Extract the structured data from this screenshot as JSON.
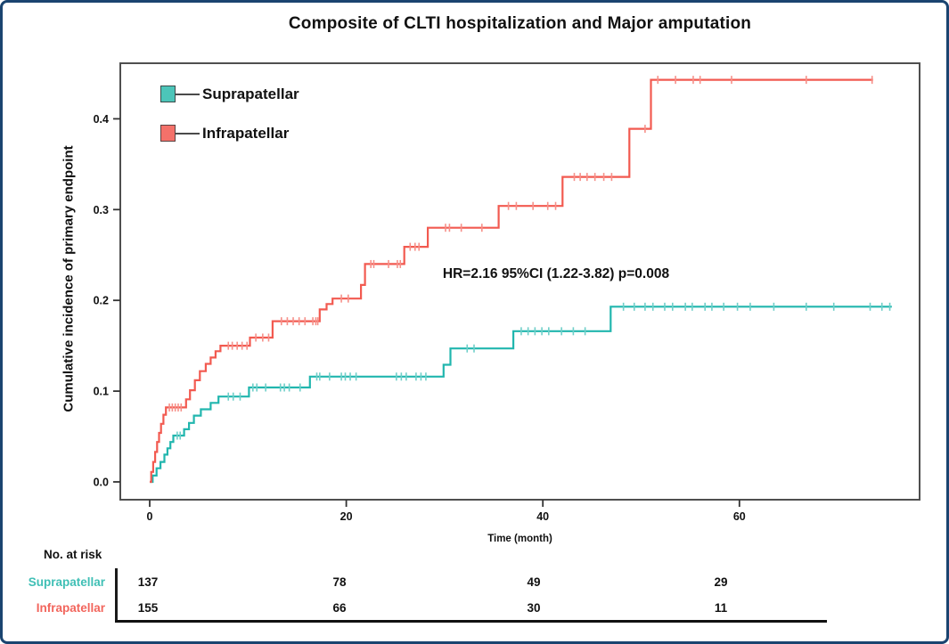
{
  "figure": {
    "border_color": "#1a4470",
    "background": "#ffffff"
  },
  "chart_data": {
    "type": "line",
    "subtype": "kaplan-meier-step",
    "title": "Composite of CLTI hospitalization and Major amputation",
    "xlabel": "Time (month)",
    "ylabel": "Cumulative incidence of primary endpoint",
    "xlim": [
      -3,
      78.5
    ],
    "ylim": [
      -0.02,
      0.46
    ],
    "xticks": [
      0,
      20,
      40,
      60
    ],
    "yticks": [
      0.0,
      0.1,
      0.2,
      0.3,
      0.4
    ],
    "grid": false,
    "legend_position": "top-left",
    "frame_color": "#4f4f4f",
    "annotation": {
      "text": "HR=2.16 95%CI (1.22-3.82) p=0.008",
      "x_month": 41.3,
      "y_value": 0.229
    },
    "series": [
      {
        "name": "Suprapatellar",
        "color": "#21b6ae",
        "tick_color": "#6fcfc9",
        "steps": [
          [
            0,
            0
          ],
          [
            0.3,
            0.007
          ],
          [
            0.7,
            0.015
          ],
          [
            1.1,
            0.022
          ],
          [
            1.5,
            0.03
          ],
          [
            1.8,
            0.037
          ],
          [
            2.1,
            0.044
          ],
          [
            2.4,
            0.051
          ],
          [
            3.5,
            0.058
          ],
          [
            4.0,
            0.065
          ],
          [
            4.5,
            0.073
          ],
          [
            5.2,
            0.08
          ],
          [
            6.2,
            0.087
          ],
          [
            7.0,
            0.094
          ],
          [
            10.1,
            0.104
          ],
          [
            16.3,
            0.116
          ],
          [
            29.9,
            0.129
          ],
          [
            30.6,
            0.147
          ],
          [
            37.0,
            0.166
          ],
          [
            46.9,
            0.193
          ],
          [
            75.5,
            0.193
          ]
        ],
        "censor_ticks": [
          [
            2.8,
            0.051
          ],
          [
            3.1,
            0.051
          ],
          [
            8.0,
            0.094
          ],
          [
            8.5,
            0.094
          ],
          [
            9.2,
            0.094
          ],
          [
            10.5,
            0.104
          ],
          [
            10.9,
            0.104
          ],
          [
            11.8,
            0.104
          ],
          [
            13.3,
            0.104
          ],
          [
            13.7,
            0.104
          ],
          [
            14.2,
            0.104
          ],
          [
            15.3,
            0.104
          ],
          [
            17.0,
            0.116
          ],
          [
            17.3,
            0.116
          ],
          [
            18.3,
            0.116
          ],
          [
            19.5,
            0.116
          ],
          [
            19.9,
            0.116
          ],
          [
            20.4,
            0.116
          ],
          [
            21.0,
            0.116
          ],
          [
            25.1,
            0.116
          ],
          [
            25.6,
            0.116
          ],
          [
            26.1,
            0.116
          ],
          [
            27.1,
            0.116
          ],
          [
            27.6,
            0.116
          ],
          [
            28.1,
            0.116
          ],
          [
            32.3,
            0.147
          ],
          [
            33.0,
            0.147
          ],
          [
            37.8,
            0.166
          ],
          [
            38.5,
            0.166
          ],
          [
            39.2,
            0.166
          ],
          [
            39.9,
            0.166
          ],
          [
            40.6,
            0.166
          ],
          [
            41.9,
            0.166
          ],
          [
            43.1,
            0.166
          ],
          [
            44.3,
            0.166
          ],
          [
            48.2,
            0.193
          ],
          [
            49.3,
            0.193
          ],
          [
            50.4,
            0.193
          ],
          [
            51.2,
            0.193
          ],
          [
            52.4,
            0.193
          ],
          [
            53.2,
            0.193
          ],
          [
            54.5,
            0.193
          ],
          [
            55.2,
            0.193
          ],
          [
            56.5,
            0.193
          ],
          [
            57.2,
            0.193
          ],
          [
            58.4,
            0.193
          ],
          [
            59.8,
            0.193
          ],
          [
            61.1,
            0.193
          ],
          [
            63.5,
            0.193
          ],
          [
            66.8,
            0.193
          ],
          [
            69.6,
            0.193
          ],
          [
            73.3,
            0.193
          ],
          [
            74.5,
            0.193
          ],
          [
            75.3,
            0.193
          ]
        ]
      },
      {
        "name": "Infrapatellar",
        "color": "#f25a50",
        "tick_color": "#f69089",
        "steps": [
          [
            0,
            0
          ],
          [
            0.15,
            0.011
          ],
          [
            0.35,
            0.022
          ],
          [
            0.55,
            0.033
          ],
          [
            0.75,
            0.044
          ],
          [
            0.95,
            0.054
          ],
          [
            1.15,
            0.064
          ],
          [
            1.4,
            0.074
          ],
          [
            1.65,
            0.082
          ],
          [
            3.7,
            0.091
          ],
          [
            4.1,
            0.101
          ],
          [
            4.6,
            0.112
          ],
          [
            5.1,
            0.122
          ],
          [
            5.7,
            0.13
          ],
          [
            6.2,
            0.137
          ],
          [
            6.7,
            0.144
          ],
          [
            7.2,
            0.15
          ],
          [
            10.2,
            0.159
          ],
          [
            12.5,
            0.177
          ],
          [
            17.3,
            0.19
          ],
          [
            18.0,
            0.196
          ],
          [
            18.6,
            0.202
          ],
          [
            21.5,
            0.217
          ],
          [
            21.9,
            0.24
          ],
          [
            25.9,
            0.259
          ],
          [
            28.3,
            0.28
          ],
          [
            35.5,
            0.304
          ],
          [
            42.0,
            0.336
          ],
          [
            48.8,
            0.389
          ],
          [
            51.0,
            0.443
          ],
          [
            73.6,
            0.443
          ]
        ],
        "censor_ticks": [
          [
            2.0,
            0.082
          ],
          [
            2.3,
            0.082
          ],
          [
            2.6,
            0.082
          ],
          [
            2.9,
            0.082
          ],
          [
            3.2,
            0.082
          ],
          [
            8.0,
            0.15
          ],
          [
            8.4,
            0.15
          ],
          [
            8.9,
            0.15
          ],
          [
            9.4,
            0.15
          ],
          [
            9.9,
            0.15
          ],
          [
            10.8,
            0.159
          ],
          [
            11.5,
            0.159
          ],
          [
            12.1,
            0.159
          ],
          [
            13.4,
            0.177
          ],
          [
            14.0,
            0.177
          ],
          [
            14.6,
            0.177
          ],
          [
            15.2,
            0.177
          ],
          [
            15.8,
            0.177
          ],
          [
            16.6,
            0.177
          ],
          [
            16.9,
            0.177
          ],
          [
            17.1,
            0.177
          ],
          [
            19.5,
            0.202
          ],
          [
            20.2,
            0.202
          ],
          [
            22.5,
            0.24
          ],
          [
            22.8,
            0.24
          ],
          [
            24.3,
            0.24
          ],
          [
            25.2,
            0.24
          ],
          [
            25.5,
            0.24
          ],
          [
            26.5,
            0.259
          ],
          [
            27.0,
            0.259
          ],
          [
            27.4,
            0.259
          ],
          [
            30.1,
            0.28
          ],
          [
            30.5,
            0.28
          ],
          [
            31.7,
            0.28
          ],
          [
            33.8,
            0.28
          ],
          [
            36.5,
            0.304
          ],
          [
            37.3,
            0.304
          ],
          [
            39.0,
            0.304
          ],
          [
            40.5,
            0.304
          ],
          [
            41.3,
            0.304
          ],
          [
            43.2,
            0.336
          ],
          [
            43.8,
            0.336
          ],
          [
            44.5,
            0.336
          ],
          [
            45.3,
            0.336
          ],
          [
            46.2,
            0.336
          ],
          [
            47.0,
            0.336
          ],
          [
            50.4,
            0.389
          ],
          [
            51.7,
            0.443
          ],
          [
            53.5,
            0.443
          ],
          [
            55.3,
            0.443
          ],
          [
            56.0,
            0.443
          ],
          [
            59.2,
            0.443
          ],
          [
            66.8,
            0.443
          ],
          [
            73.5,
            0.443
          ]
        ]
      }
    ]
  },
  "legend": {
    "items": [
      {
        "label": "Suprapatellar",
        "fill": "#4cc5b9"
      },
      {
        "label": "Infrapatellar",
        "fill": "#f4716a"
      }
    ]
  },
  "risk_table": {
    "header": "No. at risk",
    "time_points": [
      0,
      20,
      40,
      60
    ],
    "rows": [
      {
        "label": "Suprapatellar",
        "label_color": "#3fbfb5",
        "values": [
          137,
          78,
          49,
          29
        ]
      },
      {
        "label": "Infrapatellar",
        "label_color": "#f2655c",
        "values": [
          155,
          66,
          30,
          11
        ]
      }
    ]
  }
}
